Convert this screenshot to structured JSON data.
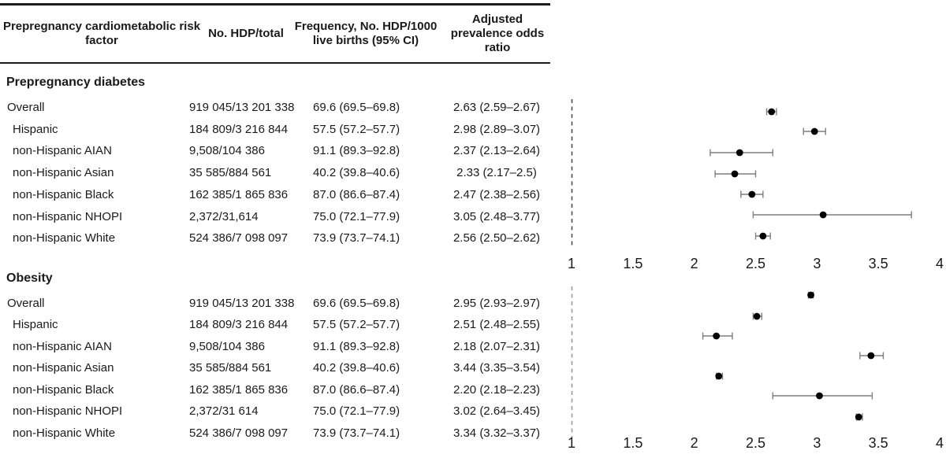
{
  "figure_type": "forest-plot-with-table",
  "colors": {
    "background": "#ffffff",
    "text": "#1a1a1a",
    "rule": "#1c1c1c",
    "reference_line_top": "#4d4d4d",
    "reference_line_bottom": "#999999",
    "ci_whisker": "#7f7f7f",
    "point_marker": "#000000"
  },
  "table": {
    "headers": [
      "Prepregnancy cardiometabolic risk factor",
      "No. HDP/total",
      "Frequency, No. HDP/1000 live births (95% CI)",
      "Adjusted prevalence odds ratio"
    ],
    "sections": [
      {
        "label": "Prepregnancy diabetes",
        "rows": [
          {
            "label": "Overall",
            "indent": false,
            "no_hdp_total": "919 045/13 201 338",
            "frequency": "69.6 (69.5–69.8)",
            "aor": "2.63 (2.59–2.67)"
          },
          {
            "label": "Hispanic",
            "indent": true,
            "no_hdp_total": "184 809/3 216 844",
            "frequency": "57.5 (57.2–57.7)",
            "aor": "2.98 (2.89–3.07)"
          },
          {
            "label": "non-Hispanic AIAN",
            "indent": true,
            "no_hdp_total": "9,508/104 386",
            "frequency": "91.1 (89.3–92.8)",
            "aor": "2.37 (2.13–2.64)"
          },
          {
            "label": "non-Hispanic Asian",
            "indent": true,
            "no_hdp_total": "35 585/884 561",
            "frequency": "40.2 (39.8–40.6)",
            "aor": "2.33 (2.17–2.5)"
          },
          {
            "label": "non-Hispanic Black",
            "indent": true,
            "no_hdp_total": "162 385/1 865 836",
            "frequency": "87.0 (86.6–87.4)",
            "aor": "2.47 (2.38–2.56)"
          },
          {
            "label": "non-Hispanic NHOPI",
            "indent": true,
            "no_hdp_total": "2,372/31,614",
            "frequency": "75.0 (72.1–77.9)",
            "aor": "3.05 (2.48–3.77)"
          },
          {
            "label": "non-Hispanic White",
            "indent": true,
            "no_hdp_total": "524 386/7 098 097",
            "frequency": "73.9 (73.7–74.1)",
            "aor": "2.56 (2.50–2.62)"
          }
        ]
      },
      {
        "label": "Obesity",
        "rows": [
          {
            "label": "Overall",
            "indent": false,
            "no_hdp_total": "919 045/13 201 338",
            "frequency": "69.6 (69.5–69.8)",
            "aor": "2.95 (2.93–2.97)"
          },
          {
            "label": "Hispanic",
            "indent": true,
            "no_hdp_total": "184 809/3 216 844",
            "frequency": "57.5 (57.2–57.7)",
            "aor": "2.51 (2.48–2.55)"
          },
          {
            "label": "non-Hispanic AIAN",
            "indent": true,
            "no_hdp_total": "9,508/104 386",
            "frequency": "91.1 (89.3–92.8)",
            "aor": "2.18 (2.07–2.31)"
          },
          {
            "label": "non-Hispanic Asian",
            "indent": true,
            "no_hdp_total": "35 585/884 561",
            "frequency": "40.2 (39.8–40.6)",
            "aor": "3.44 (3.35–3.54)"
          },
          {
            "label": "non-Hispanic Black",
            "indent": true,
            "no_hdp_total": "162 385/1 865 836",
            "frequency": "87.0 (86.6–87.4)",
            "aor": "2.20 (2.18–2.23)"
          },
          {
            "label": "non-Hispanic NHOPI",
            "indent": true,
            "no_hdp_total": "2,372/31 614",
            "frequency": "75.0 (72.1–77.9)",
            "aor": "3.02 (2.64–3.45)"
          },
          {
            "label": "non-Hispanic White",
            "indent": true,
            "no_hdp_total": "524 386/7 098 097",
            "frequency": "73.9 (73.7–74.1)",
            "aor": "3.34 (3.32–3.37)"
          }
        ]
      }
    ]
  },
  "chart_data": [
    {
      "type": "scatter",
      "subtype": "forest",
      "panel": "Prepregnancy diabetes",
      "xlim": [
        1,
        4
      ],
      "x_ticks": [
        "1",
        "1.5",
        "2",
        "2.5",
        "3",
        "3.5",
        "4"
      ],
      "reference_line_x": 1,
      "grid": false,
      "series": [
        {
          "label": "Overall",
          "estimate": 2.63,
          "ci_low": 2.59,
          "ci_high": 2.67
        },
        {
          "label": "Hispanic",
          "estimate": 2.98,
          "ci_low": 2.89,
          "ci_high": 3.07
        },
        {
          "label": "non-Hispanic AIAN",
          "estimate": 2.37,
          "ci_low": 2.13,
          "ci_high": 2.64
        },
        {
          "label": "non-Hispanic Asian",
          "estimate": 2.33,
          "ci_low": 2.17,
          "ci_high": 2.5
        },
        {
          "label": "non-Hispanic Black",
          "estimate": 2.47,
          "ci_low": 2.38,
          "ci_high": 2.56
        },
        {
          "label": "non-Hispanic NHOPI",
          "estimate": 3.05,
          "ci_low": 2.48,
          "ci_high": 3.77
        },
        {
          "label": "non-Hispanic White",
          "estimate": 2.56,
          "ci_low": 2.5,
          "ci_high": 2.62
        }
      ]
    },
    {
      "type": "scatter",
      "subtype": "forest",
      "panel": "Obesity",
      "xlim": [
        1,
        4
      ],
      "x_ticks": [
        "1",
        "1.5",
        "2",
        "2.5",
        "3",
        "3.5",
        "4"
      ],
      "reference_line_x": 1,
      "grid": false,
      "series": [
        {
          "label": "Overall",
          "estimate": 2.95,
          "ci_low": 2.93,
          "ci_high": 2.97
        },
        {
          "label": "Hispanic",
          "estimate": 2.51,
          "ci_low": 2.48,
          "ci_high": 2.55
        },
        {
          "label": "non-Hispanic AIAN",
          "estimate": 2.18,
          "ci_low": 2.07,
          "ci_high": 2.31
        },
        {
          "label": "non-Hispanic Asian",
          "estimate": 3.44,
          "ci_low": 3.35,
          "ci_high": 3.54
        },
        {
          "label": "non-Hispanic Black",
          "estimate": 2.2,
          "ci_low": 2.18,
          "ci_high": 2.23
        },
        {
          "label": "non-Hispanic NHOPI",
          "estimate": 3.02,
          "ci_low": 2.64,
          "ci_high": 3.45
        },
        {
          "label": "non-Hispanic White",
          "estimate": 3.34,
          "ci_low": 3.32,
          "ci_high": 3.37
        }
      ]
    }
  ]
}
